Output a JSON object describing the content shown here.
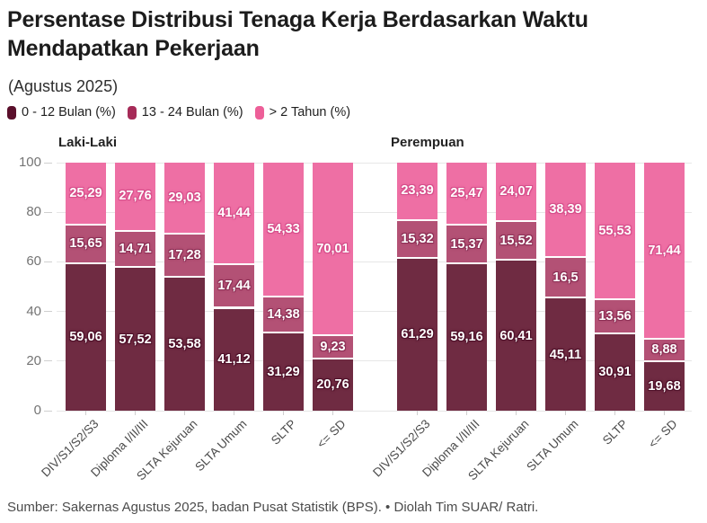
{
  "header": {
    "title": "Persentase Distribusi Tenaga Kerja Berdasarkan Waktu Mendapatkan Pekerjaan",
    "subtitle": "(Agustus 2025)"
  },
  "footer": {
    "text": "Sumber: Sakernas Agustus 2025, badan Pusat Statistik (BPS). • Diolah Tim SUAR/ Ratri."
  },
  "chart_data": {
    "type": "bar",
    "stacked": true,
    "title": "Persentase Distribusi Tenaga Kerja Berdasarkan Waktu Mendapatkan Pekerjaan",
    "subtitle": "(Agustus 2025)",
    "ylabel": "",
    "xlabel": "",
    "ylim": [
      0,
      100
    ],
    "y_ticks": [
      0,
      20,
      40,
      60,
      80,
      100
    ],
    "grid": true,
    "legend_position": "top",
    "value_decimal_separator": ",",
    "categories": [
      "DIV/S1/S2/S3",
      "Diploma I/II/III",
      "SLTA Kejuruan",
      "SLTA Umum",
      "SLTP",
      "<= SD"
    ],
    "series_meta": [
      {
        "name": "0 - 12 Bulan (%)",
        "bar_color": "#6F2B42",
        "legend_color": "#5A0F2B",
        "label_outline": "#4E0F28"
      },
      {
        "name": "13 - 24 Bulan (%)",
        "bar_color": "#B35175",
        "legend_color": "#A62B58",
        "label_outline": "#8D2F55"
      },
      {
        "name": "> 2 Tahun (%)",
        "bar_color": "#EE6FA4",
        "legend_color": "#ED5F98",
        "label_outline": "#D64E8A"
      }
    ],
    "panels": [
      {
        "label": "Laki-Laki",
        "series": [
          {
            "name": "0 - 12 Bulan (%)",
            "values": [
              59.06,
              57.52,
              53.58,
              41.12,
              31.29,
              20.76
            ]
          },
          {
            "name": "13 - 24 Bulan (%)",
            "values": [
              15.65,
              14.71,
              17.28,
              17.44,
              14.38,
              9.23
            ]
          },
          {
            "name": "> 2 Tahun (%)",
            "values": [
              25.29,
              27.76,
              29.03,
              41.44,
              54.33,
              70.01
            ]
          }
        ]
      },
      {
        "label": "Perempuan",
        "series": [
          {
            "name": "0 - 12 Bulan (%)",
            "values": [
              61.29,
              59.16,
              60.41,
              45.11,
              30.91,
              19.68
            ]
          },
          {
            "name": "13 - 24 Bulan (%)",
            "values": [
              15.32,
              15.37,
              15.52,
              16.5,
              13.56,
              8.88
            ]
          },
          {
            "name": "> 2 Tahun (%)",
            "values": [
              23.39,
              25.47,
              24.07,
              38.39,
              55.53,
              71.44
            ]
          }
        ]
      }
    ]
  }
}
